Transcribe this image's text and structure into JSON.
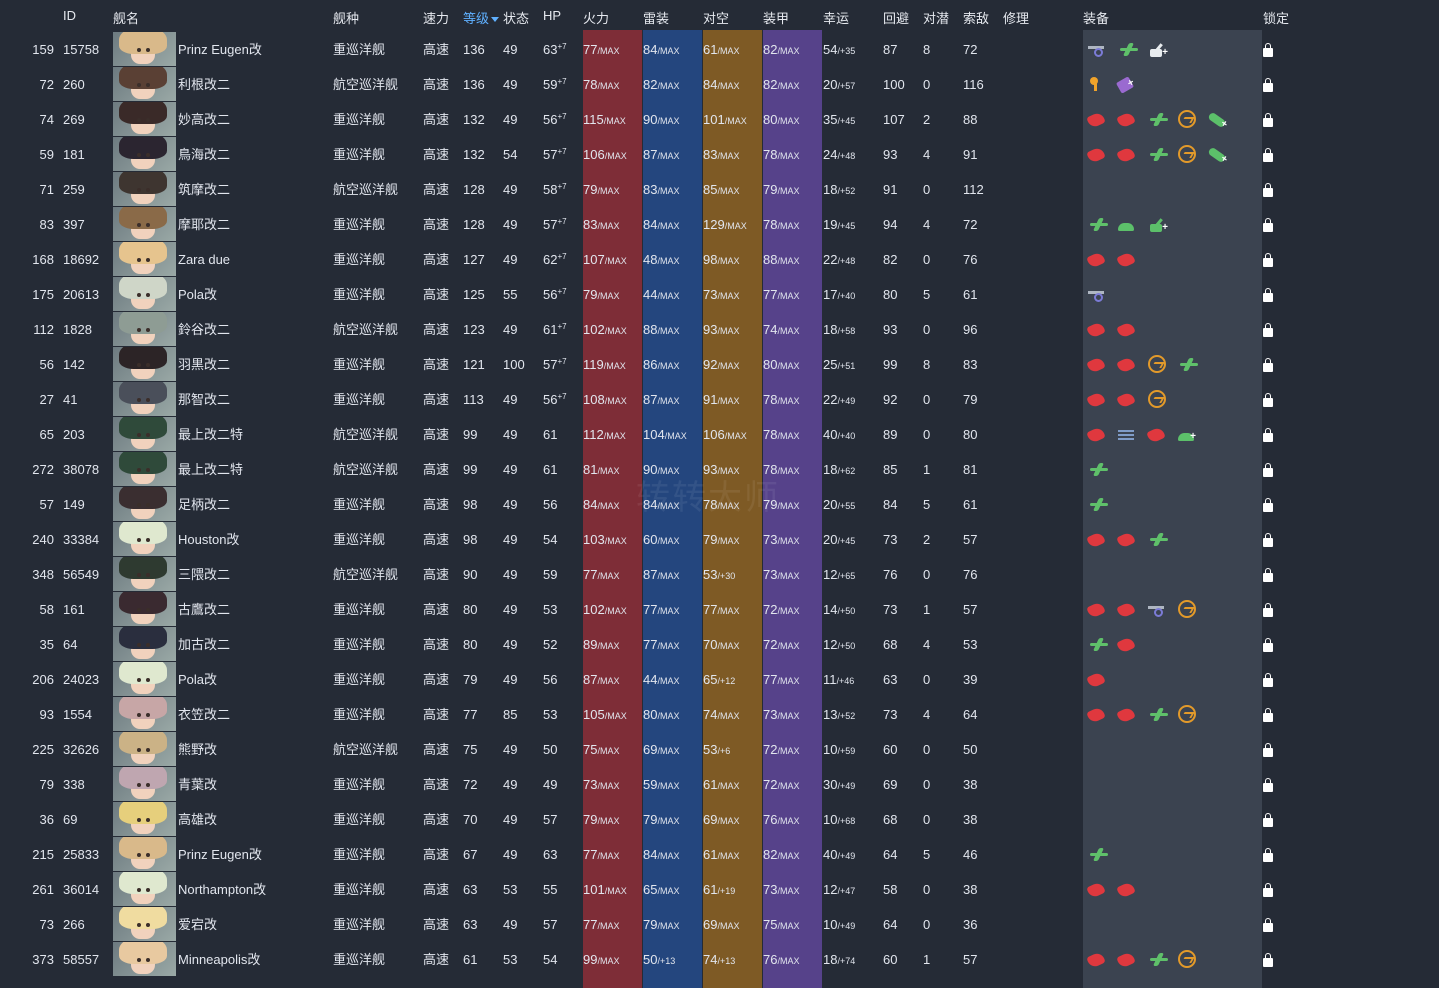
{
  "colors": {
    "background": "#252b36",
    "firepower_column": "#7e2d37",
    "torpedo_column": "#24467e",
    "antiair_column": "#7e5a25",
    "armor_column": "#56428a",
    "equipment_column": "#3b4350",
    "sort_active": "#5fb0ff"
  },
  "header": {
    "id": "ID",
    "name": "舰名",
    "type": "舰种",
    "speed": "速力",
    "level": "等级",
    "cond": "状态",
    "hp": "HP",
    "firepower": "火力",
    "torpedo": "雷装",
    "antiair": "对空",
    "armor": "装甲",
    "luck": "幸运",
    "evasion": "回避",
    "asw": "对潜",
    "los": "索敌",
    "repair": "修理",
    "equipment": "装备",
    "lock": "锁定"
  },
  "watermark": "转转大师",
  "rows": [
    {
      "no": "159",
      "id": "15758",
      "name": "Prinz Eugen改",
      "type": "重巡洋舰",
      "speed": "高速",
      "lv": "136",
      "cond": "49",
      "hp": "63",
      "hp_sup": "+7",
      "fire": "77",
      "fire_s": "/MAX",
      "torp": "84",
      "torp_s": "/MAX",
      "aa": "61",
      "aa_s": "/MAX",
      "armor": "82",
      "armor_s": "/MAX",
      "luck": "54",
      "luck_s": "/+35",
      "eva": "87",
      "asw": "8",
      "los": "72",
      "equip": [
        "seaplane",
        "plane-g",
        "aa+"
      ]
    },
    {
      "no": "72",
      "id": "260",
      "name": "利根改二",
      "type": "航空巡洋舰",
      "speed": "高速",
      "lv": "136",
      "cond": "49",
      "hp": "59",
      "hp_sup": "+7",
      "fire": "78",
      "fire_s": "/MAX",
      "torp": "82",
      "torp_s": "/MAX",
      "aa": "84",
      "aa_s": "/MAX",
      "armor": "82",
      "armor_s": "/MAX",
      "luck": "20",
      "luck_s": "/+57",
      "eva": "100",
      "asw": "0",
      "los": "116",
      "equip": [
        "searchlight",
        "repair+"
      ]
    },
    {
      "no": "74",
      "id": "269",
      "name": "妙高改二",
      "type": "重巡洋舰",
      "speed": "高速",
      "lv": "132",
      "cond": "49",
      "hp": "56",
      "hp_sup": "+7",
      "fire": "115",
      "fire_s": "/MAX",
      "torp": "90",
      "torp_s": "/MAX",
      "aa": "101",
      "aa_s": "/MAX",
      "armor": "80",
      "armor_s": "/MAX",
      "luck": "35",
      "luck_s": "/+45",
      "eva": "107",
      "asw": "2",
      "los": "88",
      "equip": [
        "gun",
        "gun",
        "plane-g",
        "radar",
        "torp+"
      ]
    },
    {
      "no": "59",
      "id": "181",
      "name": "鳥海改二",
      "type": "重巡洋舰",
      "speed": "高速",
      "lv": "132",
      "cond": "54",
      "hp": "57",
      "hp_sup": "+7",
      "fire": "106",
      "fire_s": "/MAX",
      "torp": "87",
      "torp_s": "/MAX",
      "aa": "83",
      "aa_s": "/MAX",
      "armor": "78",
      "armor_s": "/MAX",
      "luck": "24",
      "luck_s": "/+48",
      "eva": "93",
      "asw": "4",
      "los": "91",
      "equip": [
        "gun",
        "gun",
        "plane-g",
        "radar",
        "torp+"
      ]
    },
    {
      "no": "71",
      "id": "259",
      "name": "筑摩改二",
      "type": "航空巡洋舰",
      "speed": "高速",
      "lv": "128",
      "cond": "49",
      "hp": "58",
      "hp_sup": "+7",
      "fire": "79",
      "fire_s": "/MAX",
      "torp": "83",
      "torp_s": "/MAX",
      "aa": "85",
      "aa_s": "/MAX",
      "armor": "79",
      "armor_s": "/MAX",
      "luck": "18",
      "luck_s": "/+52",
      "eva": "91",
      "asw": "0",
      "los": "112",
      "equip": []
    },
    {
      "no": "83",
      "id": "397",
      "name": "摩耶改二",
      "type": "重巡洋舰",
      "speed": "高速",
      "lv": "128",
      "cond": "49",
      "hp": "57",
      "hp_sup": "+7",
      "fire": "83",
      "fire_s": "/MAX",
      "torp": "84",
      "torp_s": "/MAX",
      "aa": "129",
      "aa_s": "/MAX",
      "armor": "78",
      "armor_s": "/MAX",
      "luck": "19",
      "luck_s": "/+45",
      "eva": "94",
      "asw": "4",
      "los": "72",
      "equip": [
        "plane-g",
        "bulge",
        "aa-g+"
      ]
    },
    {
      "no": "168",
      "id": "18692",
      "name": "Zara due",
      "type": "重巡洋舰",
      "speed": "高速",
      "lv": "127",
      "cond": "49",
      "hp": "62",
      "hp_sup": "+7",
      "fire": "107",
      "fire_s": "/MAX",
      "torp": "48",
      "torp_s": "/MAX",
      "aa": "98",
      "aa_s": "/MAX",
      "armor": "88",
      "armor_s": "/MAX",
      "luck": "22",
      "luck_s": "/+48",
      "eva": "82",
      "asw": "0",
      "los": "76",
      "equip": [
        "gun",
        "gun"
      ]
    },
    {
      "no": "175",
      "id": "20613",
      "name": "Pola改",
      "type": "重巡洋舰",
      "speed": "高速",
      "lv": "125",
      "cond": "55",
      "hp": "56",
      "hp_sup": "+7",
      "fire": "79",
      "fire_s": "/MAX",
      "torp": "44",
      "torp_s": "/MAX",
      "aa": "73",
      "aa_s": "/MAX",
      "armor": "77",
      "armor_s": "/MAX",
      "luck": "17",
      "luck_s": "/+40",
      "eva": "80",
      "asw": "5",
      "los": "61",
      "equip": [
        "seaplane"
      ]
    },
    {
      "no": "112",
      "id": "1828",
      "name": "鈴谷改二",
      "type": "航空巡洋舰",
      "speed": "高速",
      "lv": "123",
      "cond": "49",
      "hp": "61",
      "hp_sup": "+7",
      "fire": "102",
      "fire_s": "/MAX",
      "torp": "88",
      "torp_s": "/MAX",
      "aa": "93",
      "aa_s": "/MAX",
      "armor": "74",
      "armor_s": "/MAX",
      "luck": "18",
      "luck_s": "/+58",
      "eva": "93",
      "asw": "0",
      "los": "96",
      "equip": [
        "gun",
        "gun"
      ]
    },
    {
      "no": "56",
      "id": "142",
      "name": "羽黒改二",
      "type": "重巡洋舰",
      "speed": "高速",
      "lv": "121",
      "cond": "100",
      "hp": "57",
      "hp_sup": "+7",
      "fire": "119",
      "fire_s": "/MAX",
      "torp": "86",
      "torp_s": "/MAX",
      "aa": "92",
      "aa_s": "/MAX",
      "armor": "80",
      "armor_s": "/MAX",
      "luck": "25",
      "luck_s": "/+51",
      "eva": "99",
      "asw": "8",
      "los": "83",
      "equip": [
        "gun",
        "gun",
        "radar",
        "plane-g"
      ]
    },
    {
      "no": "27",
      "id": "41",
      "name": "那智改二",
      "type": "重巡洋舰",
      "speed": "高速",
      "lv": "113",
      "cond": "49",
      "hp": "56",
      "hp_sup": "+7",
      "fire": "108",
      "fire_s": "/MAX",
      "torp": "87",
      "torp_s": "/MAX",
      "aa": "91",
      "aa_s": "/MAX",
      "armor": "78",
      "armor_s": "/MAX",
      "luck": "22",
      "luck_s": "/+49",
      "eva": "92",
      "asw": "0",
      "los": "79",
      "equip": [
        "gun",
        "gun",
        "radar"
      ]
    },
    {
      "no": "65",
      "id": "203",
      "name": "最上改二特",
      "type": "航空巡洋舰",
      "speed": "高速",
      "lv": "99",
      "cond": "49",
      "hp": "61",
      "hp_sup": "",
      "fire": "112",
      "fire_s": "/MAX",
      "torp": "104",
      "torp_s": "/MAX",
      "aa": "106",
      "aa_s": "/MAX",
      "armor": "78",
      "armor_s": "/MAX",
      "luck": "40",
      "luck_s": "/+40",
      "eva": "89",
      "asw": "0",
      "los": "80",
      "equip": [
        "gun",
        "lines",
        "gun",
        "bulge+"
      ]
    },
    {
      "no": "272",
      "id": "38078",
      "name": "最上改二特",
      "type": "航空巡洋舰",
      "speed": "高速",
      "lv": "99",
      "cond": "49",
      "hp": "61",
      "hp_sup": "",
      "fire": "81",
      "fire_s": "/MAX",
      "torp": "90",
      "torp_s": "/MAX",
      "aa": "93",
      "aa_s": "/MAX",
      "armor": "78",
      "armor_s": "/MAX",
      "luck": "18",
      "luck_s": "/+62",
      "eva": "85",
      "asw": "1",
      "los": "81",
      "equip": [
        "plane-g"
      ]
    },
    {
      "no": "57",
      "id": "149",
      "name": "足柄改二",
      "type": "重巡洋舰",
      "speed": "高速",
      "lv": "98",
      "cond": "49",
      "hp": "56",
      "hp_sup": "",
      "fire": "84",
      "fire_s": "/MAX",
      "torp": "84",
      "torp_s": "/MAX",
      "aa": "78",
      "aa_s": "/MAX",
      "armor": "79",
      "armor_s": "/MAX",
      "luck": "20",
      "luck_s": "/+55",
      "eva": "84",
      "asw": "5",
      "los": "61",
      "equip": [
        "plane-g"
      ]
    },
    {
      "no": "240",
      "id": "33384",
      "name": "Houston改",
      "type": "重巡洋舰",
      "speed": "高速",
      "lv": "98",
      "cond": "49",
      "hp": "54",
      "hp_sup": "",
      "fire": "103",
      "fire_s": "/MAX",
      "torp": "60",
      "torp_s": "/MAX",
      "aa": "79",
      "aa_s": "/MAX",
      "armor": "73",
      "armor_s": "/MAX",
      "luck": "20",
      "luck_s": "/+45",
      "eva": "73",
      "asw": "2",
      "los": "57",
      "equip": [
        "gun",
        "gun",
        "plane-g"
      ]
    },
    {
      "no": "348",
      "id": "56549",
      "name": "三隈改二",
      "type": "航空巡洋舰",
      "speed": "高速",
      "lv": "90",
      "cond": "49",
      "hp": "59",
      "hp_sup": "",
      "fire": "77",
      "fire_s": "/MAX",
      "torp": "87",
      "torp_s": "/MAX",
      "aa": "53",
      "aa_s": "/+30",
      "armor": "73",
      "armor_s": "/MAX",
      "luck": "12",
      "luck_s": "/+65",
      "eva": "76",
      "asw": "0",
      "los": "76",
      "equip": []
    },
    {
      "no": "58",
      "id": "161",
      "name": "古鷹改二",
      "type": "重巡洋舰",
      "speed": "高速",
      "lv": "80",
      "cond": "49",
      "hp": "53",
      "hp_sup": "",
      "fire": "102",
      "fire_s": "/MAX",
      "torp": "77",
      "torp_s": "/MAX",
      "aa": "77",
      "aa_s": "/MAX",
      "armor": "72",
      "armor_s": "/MAX",
      "luck": "14",
      "luck_s": "/+50",
      "eva": "73",
      "asw": "1",
      "los": "57",
      "equip": [
        "gun",
        "gun",
        "seaplane",
        "radar"
      ]
    },
    {
      "no": "35",
      "id": "64",
      "name": "加古改二",
      "type": "重巡洋舰",
      "speed": "高速",
      "lv": "80",
      "cond": "49",
      "hp": "52",
      "hp_sup": "",
      "fire": "89",
      "fire_s": "/MAX",
      "torp": "77",
      "torp_s": "/MAX",
      "aa": "70",
      "aa_s": "/MAX",
      "armor": "72",
      "armor_s": "/MAX",
      "luck": "12",
      "luck_s": "/+50",
      "eva": "68",
      "asw": "4",
      "los": "53",
      "equip": [
        "plane-g",
        "gun"
      ]
    },
    {
      "no": "206",
      "id": "24023",
      "name": "Pola改",
      "type": "重巡洋舰",
      "speed": "高速",
      "lv": "79",
      "cond": "49",
      "hp": "56",
      "hp_sup": "",
      "fire": "87",
      "fire_s": "/MAX",
      "torp": "44",
      "torp_s": "/MAX",
      "aa": "65",
      "aa_s": "/+12",
      "armor": "77",
      "armor_s": "/MAX",
      "luck": "11",
      "luck_s": "/+46",
      "eva": "63",
      "asw": "0",
      "los": "39",
      "equip": [
        "gun"
      ]
    },
    {
      "no": "93",
      "id": "1554",
      "name": "衣笠改二",
      "type": "重巡洋舰",
      "speed": "高速",
      "lv": "77",
      "cond": "85",
      "hp": "53",
      "hp_sup": "",
      "fire": "105",
      "fire_s": "/MAX",
      "torp": "80",
      "torp_s": "/MAX",
      "aa": "74",
      "aa_s": "/MAX",
      "armor": "73",
      "armor_s": "/MAX",
      "luck": "13",
      "luck_s": "/+52",
      "eva": "73",
      "asw": "4",
      "los": "64",
      "equip": [
        "gun",
        "gun",
        "plane-g",
        "radar"
      ]
    },
    {
      "no": "225",
      "id": "32626",
      "name": "熊野改",
      "type": "航空巡洋舰",
      "speed": "高速",
      "lv": "75",
      "cond": "49",
      "hp": "50",
      "hp_sup": "",
      "fire": "75",
      "fire_s": "/MAX",
      "torp": "69",
      "torp_s": "/MAX",
      "aa": "53",
      "aa_s": "/+6",
      "armor": "72",
      "armor_s": "/MAX",
      "luck": "10",
      "luck_s": "/+59",
      "eva": "60",
      "asw": "0",
      "los": "50",
      "equip": []
    },
    {
      "no": "79",
      "id": "338",
      "name": "青葉改",
      "type": "重巡洋舰",
      "speed": "高速",
      "lv": "72",
      "cond": "49",
      "hp": "49",
      "hp_sup": "",
      "fire": "73",
      "fire_s": "/MAX",
      "torp": "59",
      "torp_s": "/MAX",
      "aa": "61",
      "aa_s": "/MAX",
      "armor": "72",
      "armor_s": "/MAX",
      "luck": "30",
      "luck_s": "/+49",
      "eva": "69",
      "asw": "0",
      "los": "38",
      "equip": []
    },
    {
      "no": "36",
      "id": "69",
      "name": "高雄改",
      "type": "重巡洋舰",
      "speed": "高速",
      "lv": "70",
      "cond": "49",
      "hp": "57",
      "hp_sup": "",
      "fire": "79",
      "fire_s": "/MAX",
      "torp": "79",
      "torp_s": "/MAX",
      "aa": "69",
      "aa_s": "/MAX",
      "armor": "76",
      "armor_s": "/MAX",
      "luck": "10",
      "luck_s": "/+68",
      "eva": "68",
      "asw": "0",
      "los": "38",
      "equip": []
    },
    {
      "no": "215",
      "id": "25833",
      "name": "Prinz Eugen改",
      "type": "重巡洋舰",
      "speed": "高速",
      "lv": "67",
      "cond": "49",
      "hp": "63",
      "hp_sup": "",
      "fire": "77",
      "fire_s": "/MAX",
      "torp": "84",
      "torp_s": "/MAX",
      "aa": "61",
      "aa_s": "/MAX",
      "armor": "82",
      "armor_s": "/MAX",
      "luck": "40",
      "luck_s": "/+49",
      "eva": "64",
      "asw": "5",
      "los": "46",
      "equip": [
        "plane-g"
      ]
    },
    {
      "no": "261",
      "id": "36014",
      "name": "Northampton改",
      "type": "重巡洋舰",
      "speed": "高速",
      "lv": "63",
      "cond": "53",
      "hp": "55",
      "hp_sup": "",
      "fire": "101",
      "fire_s": "/MAX",
      "torp": "65",
      "torp_s": "/MAX",
      "aa": "61",
      "aa_s": "/+19",
      "armor": "73",
      "armor_s": "/MAX",
      "luck": "12",
      "luck_s": "/+47",
      "eva": "58",
      "asw": "0",
      "los": "38",
      "equip": [
        "gun",
        "gun"
      ]
    },
    {
      "no": "73",
      "id": "266",
      "name": "爱宕改",
      "type": "重巡洋舰",
      "speed": "高速",
      "lv": "63",
      "cond": "49",
      "hp": "57",
      "hp_sup": "",
      "fire": "77",
      "fire_s": "/MAX",
      "torp": "79",
      "torp_s": "/MAX",
      "aa": "69",
      "aa_s": "/MAX",
      "armor": "75",
      "armor_s": "/MAX",
      "luck": "10",
      "luck_s": "/+49",
      "eva": "64",
      "asw": "0",
      "los": "36",
      "equip": []
    },
    {
      "no": "373",
      "id": "58557",
      "name": "Minneapolis改",
      "type": "重巡洋舰",
      "speed": "高速",
      "lv": "61",
      "cond": "53",
      "hp": "54",
      "hp_sup": "",
      "fire": "99",
      "fire_s": "/MAX",
      "torp": "50",
      "torp_s": "/+13",
      "aa": "74",
      "aa_s": "/+13",
      "armor": "76",
      "armor_s": "/MAX",
      "luck": "18",
      "luck_s": "/+74",
      "eva": "60",
      "asw": "1",
      "los": "57",
      "equip": [
        "gun",
        "gun",
        "plane-g",
        "radar"
      ]
    }
  ]
}
